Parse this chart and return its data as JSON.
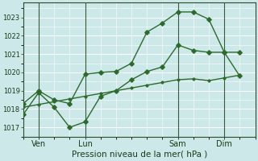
{
  "background_color": "#cce8e8",
  "grid_color": "#ffffff",
  "line_color": "#2d6a2d",
  "xlabel": "Pression niveau de la mer( hPa )",
  "ylim": [
    1016.5,
    1023.8
  ],
  "yticks": [
    1017,
    1018,
    1019,
    1020,
    1021,
    1022,
    1023
  ],
  "xtick_labels": [
    "Ven",
    "Lun",
    "Sam",
    "Dim"
  ],
  "xtick_positions": [
    1,
    4,
    10,
    13
  ],
  "xlim": [
    0,
    15
  ],
  "series1_x": [
    0,
    1,
    2,
    3,
    4,
    5,
    6,
    7,
    8,
    9,
    10,
    11,
    12,
    13,
    14
  ],
  "series1_y": [
    1017.7,
    1018.9,
    1018.1,
    1017.0,
    1017.3,
    1018.7,
    1019.0,
    1019.6,
    1020.05,
    1020.3,
    1021.5,
    1021.2,
    1021.1,
    1021.1,
    1019.8
  ],
  "series2_x": [
    0,
    1,
    2,
    3,
    4,
    5,
    6,
    7,
    8,
    9,
    10,
    11,
    12,
    13,
    14
  ],
  "series2_y": [
    1018.3,
    1019.0,
    1018.5,
    1018.3,
    1019.9,
    1020.0,
    1020.05,
    1020.5,
    1022.2,
    1022.7,
    1023.3,
    1023.3,
    1022.9,
    1021.1,
    1021.1
  ],
  "series3_x": [
    0,
    1,
    2,
    3,
    4,
    5,
    6,
    7,
    8,
    9,
    10,
    11,
    12,
    13,
    14
  ],
  "series3_y": [
    1018.1,
    1018.25,
    1018.4,
    1018.55,
    1018.7,
    1018.85,
    1019.0,
    1019.15,
    1019.3,
    1019.45,
    1019.6,
    1019.65,
    1019.55,
    1019.7,
    1019.85
  ],
  "vline_positions": [
    1,
    4,
    10,
    13
  ],
  "marker_size": 2.8,
  "line_width": 1.0
}
